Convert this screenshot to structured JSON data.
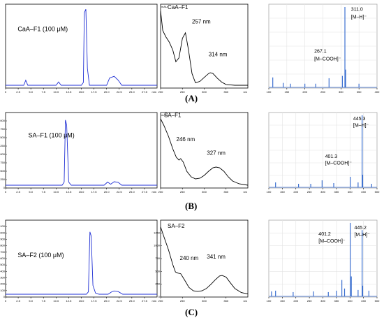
{
  "chart_data": [
    {
      "id": "A-hplc",
      "type": "line",
      "title": "CaA–F1 (100 μM)",
      "ylim": [
        0,
        1.4
      ],
      "xlim": [
        0,
        30
      ],
      "xticks": [
        "0",
        "2.5",
        "5.0",
        "7.5",
        "10.0",
        "12.5",
        "15.0",
        "17.5",
        "20.0",
        "22.5",
        "25.0",
        "27.5"
      ],
      "xunit": "min",
      "yticks": [],
      "series": [
        {
          "color": "#1f2fd4",
          "x": [
            0,
            3.6,
            4,
            4.4,
            10,
            10.5,
            11,
            15,
            15.4,
            15.6,
            15.9,
            16.2,
            16.6,
            17,
            20,
            20.6,
            21.5,
            22.3,
            23,
            25,
            30
          ],
          "y": [
            0,
            0,
            0.09,
            0,
            0,
            0.06,
            0,
            0,
            0.05,
            1.3,
            1.36,
            0.3,
            0,
            0,
            0,
            0.13,
            0.16,
            0.09,
            0,
            0,
            0
          ]
        }
      ]
    },
    {
      "id": "A-uv",
      "type": "line",
      "title": "CaA–F1",
      "unit": "mAU",
      "ylim": [
        0,
        1
      ],
      "xlim": [
        200,
        400
      ],
      "xticks": [
        "200",
        "250",
        "300",
        "350"
      ],
      "xunit": "nm",
      "yticks": [],
      "annotations": [
        {
          "text": "257 nm"
        },
        {
          "text": "314 nm"
        }
      ],
      "series": [
        {
          "color": "#000000",
          "x": [
            200,
            205,
            212,
            220,
            228,
            235,
            242,
            250,
            257,
            264,
            272,
            280,
            290,
            300,
            310,
            314,
            320,
            330,
            340,
            350,
            370,
            400
          ],
          "y": [
            0.95,
            0.7,
            0.62,
            0.55,
            0.45,
            0.3,
            0.35,
            0.6,
            0.67,
            0.45,
            0.15,
            0.03,
            0.05,
            0.1,
            0.15,
            0.16,
            0.15,
            0.09,
            0.04,
            0.01,
            0,
            0
          ]
        }
      ]
    },
    {
      "id": "A-ms",
      "type": "bar",
      "xlim": [
        100,
        400
      ],
      "ylim": [
        0,
        100
      ],
      "xticks": [
        "100",
        "150",
        "200",
        "250",
        "300",
        "350",
        "400"
      ],
      "yticks": [],
      "annotations": [
        {
          "text": "311.0"
        },
        {
          "text": "[M–H]⁻"
        },
        {
          "text": "267.1"
        },
        {
          "text": "[M–COOH]⁻"
        }
      ],
      "peaks": [
        {
          "x": 111,
          "y": 10
        },
        {
          "x": 140,
          "y": 3
        },
        {
          "x": 160,
          "y": 2
        },
        {
          "x": 200,
          "y": 2
        },
        {
          "x": 230,
          "y": 2
        },
        {
          "x": 267,
          "y": 9
        },
        {
          "x": 304,
          "y": 12
        },
        {
          "x": 311,
          "y": 100
        },
        {
          "x": 313,
          "y": 20
        },
        {
          "x": 350,
          "y": 2
        }
      ]
    },
    {
      "id": "B-hplc",
      "type": "line",
      "title": "SA–F1 (100 μM)",
      "ylim": [
        0,
        2200
      ],
      "xlim": [
        0,
        30
      ],
      "xticks": [
        "0",
        "2.5",
        "5.0",
        "7.5",
        "10.0",
        "12.5",
        "15.0",
        "17.5",
        "20.0",
        "22.5",
        "25.0",
        "27.5"
      ],
      "xunit": "min",
      "yticks": [
        "0",
        "250",
        "500",
        "750",
        "1000",
        "1250",
        "1500",
        "1750",
        "2000"
      ],
      "series": [
        {
          "color": "#1f2fd4",
          "x": [
            0,
            11.2,
            11.6,
            11.85,
            12.1,
            12.5,
            13,
            19.5,
            20.2,
            20.8,
            21.5,
            22.3,
            23,
            30
          ],
          "y": [
            0,
            0,
            100,
            2050,
            1900,
            100,
            0,
            0,
            100,
            30,
            110,
            90,
            0,
            0
          ]
        }
      ]
    },
    {
      "id": "B-uv",
      "type": "line",
      "title": "SA–F1",
      "unit": "mAU",
      "ylim": [
        0,
        1
      ],
      "xlim": [
        200,
        400
      ],
      "xticks": [
        "200",
        "250",
        "300",
        "350"
      ],
      "xunit": "nm",
      "yticks": [],
      "annotations": [
        {
          "text": "246 nm"
        },
        {
          "text": "327 nm"
        }
      ],
      "series": [
        {
          "color": "#000000",
          "x": [
            200,
            208,
            218,
            228,
            236,
            242,
            246,
            252,
            260,
            270,
            280,
            290,
            300,
            310,
            320,
            327,
            335,
            345,
            355,
            365,
            380,
            400
          ],
          "y": [
            0.95,
            0.85,
            0.7,
            0.52,
            0.4,
            0.36,
            0.38,
            0.33,
            0.2,
            0.12,
            0.09,
            0.1,
            0.14,
            0.2,
            0.25,
            0.26,
            0.25,
            0.2,
            0.12,
            0.06,
            0.02,
            0
          ]
        }
      ]
    },
    {
      "id": "B-ms",
      "type": "bar",
      "xlim": [
        100,
        500
      ],
      "ylim": [
        0,
        100
      ],
      "xticks": [
        "100",
        "150",
        "200",
        "250",
        "300",
        "350",
        "400",
        "450",
        "500"
      ],
      "yticks": [],
      "annotations": [
        {
          "text": "445.3"
        },
        {
          "text": "[M–H]⁻"
        },
        {
          "text": "401.3"
        },
        {
          "text": "[M–COOH]⁻"
        }
      ],
      "peaks": [
        {
          "x": 125,
          "y": 4
        },
        {
          "x": 210,
          "y": 2
        },
        {
          "x": 255,
          "y": 2
        },
        {
          "x": 297,
          "y": 7
        },
        {
          "x": 340,
          "y": 3
        },
        {
          "x": 401,
          "y": 12
        },
        {
          "x": 430,
          "y": 4
        },
        {
          "x": 445,
          "y": 100
        },
        {
          "x": 447,
          "y": 15
        },
        {
          "x": 480,
          "y": 2
        }
      ]
    },
    {
      "id": "C-hplc",
      "type": "line",
      "title": "SA–F2 (100 μM)",
      "ylim": [
        0,
        1200
      ],
      "xlim": [
        0,
        30
      ],
      "xticks": [
        "0",
        "2.5",
        "5.0",
        "7.5",
        "10.0",
        "12.5",
        "15.0",
        "17.5",
        "20.0",
        "22.5",
        "25.0",
        "27.5"
      ],
      "xunit": "min",
      "yticks": [
        "0",
        "100",
        "200",
        "300",
        "400",
        "500",
        "600",
        "700",
        "800",
        "900",
        "1000",
        "1100"
      ],
      "series": [
        {
          "color": "#1f2fd4",
          "x": [
            0,
            16,
            16.4,
            16.7,
            16.95,
            17.3,
            17.8,
            18.5,
            20.3,
            21,
            21.5,
            22.3,
            23.2,
            30
          ],
          "y": [
            0,
            0,
            40,
            1050,
            980,
            150,
            20,
            0,
            0,
            40,
            55,
            45,
            0,
            0
          ]
        }
      ]
    },
    {
      "id": "C-uv",
      "type": "line",
      "title": "SA–F2",
      "unit": "",
      "ylim": [
        0,
        1250
      ],
      "xlim": [
        200,
        400
      ],
      "xticks": [
        "200",
        "250",
        "300",
        "350"
      ],
      "xunit": "nm",
      "yticks": [
        "0",
        "250",
        "500",
        "750",
        "1000",
        "1250"
      ],
      "annotations": [
        {
          "text": "240 nm"
        },
        {
          "text": "341 nm"
        }
      ],
      "series": [
        {
          "color": "#000000",
          "x": [
            200,
            208,
            218,
            228,
            234,
            240,
            246,
            255,
            265,
            275,
            285,
            295,
            305,
            315,
            325,
            335,
            341,
            350,
            360,
            370,
            385,
            400
          ],
          "y": [
            1180,
            1000,
            780,
            520,
            390,
            370,
            360,
            250,
            120,
            60,
            50,
            60,
            100,
            170,
            250,
            320,
            330,
            300,
            200,
            100,
            30,
            5
          ]
        }
      ]
    },
    {
      "id": "C-ms",
      "type": "bar",
      "xlim": [
        100,
        500
      ],
      "ylim": [
        0,
        100
      ],
      "xticks": [
        "100",
        "150",
        "200",
        "250",
        "300",
        "350",
        "400",
        "450",
        "500"
      ],
      "yticks": [],
      "annotations": [
        {
          "text": "401.2"
        },
        {
          "text": "[M–COOH]⁻"
        },
        {
          "text": "445.2"
        },
        {
          "text": "[M–H]⁻"
        }
      ],
      "peaks": [
        {
          "x": 110,
          "y": 4
        },
        {
          "x": 125,
          "y": 5
        },
        {
          "x": 190,
          "y": 3
        },
        {
          "x": 265,
          "y": 4
        },
        {
          "x": 320,
          "y": 3
        },
        {
          "x": 350,
          "y": 5
        },
        {
          "x": 370,
          "y": 20
        },
        {
          "x": 380,
          "y": 8
        },
        {
          "x": 401,
          "y": 100
        },
        {
          "x": 405,
          "y": 25
        },
        {
          "x": 430,
          "y": 6
        },
        {
          "x": 445,
          "y": 90
        },
        {
          "x": 447,
          "y": 12
        },
        {
          "x": 470,
          "y": 5
        }
      ]
    }
  ],
  "panel_labels": [
    "(A)",
    "(B)",
    "(C)"
  ]
}
